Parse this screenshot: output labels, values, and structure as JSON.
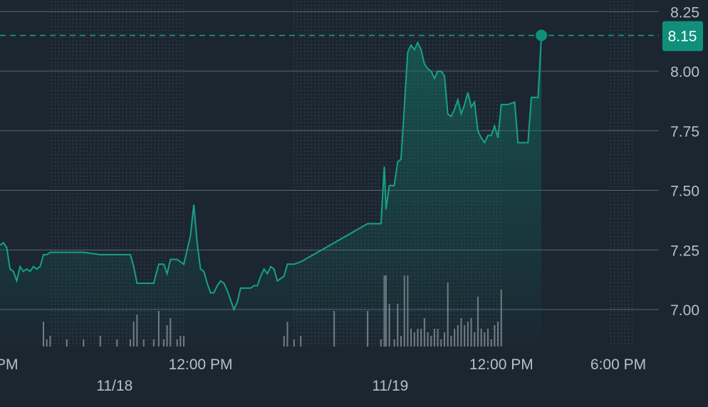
{
  "chart_data": {
    "type": "area",
    "title": "",
    "xlabel": "",
    "ylabel": "",
    "ylim": [
      6.9,
      8.26
    ],
    "yticks": [
      "8.25",
      "8.00",
      "7.75",
      "7.50",
      "7.25",
      "7.00"
    ],
    "xtick_time_labels": [
      {
        "label": "PM",
        "t": 0.0
      },
      {
        "label": "12:00 PM",
        "t": 1.2
      },
      {
        "label": "12:00 PM",
        "t": 3.0
      },
      {
        "label": "6:00 PM",
        "t": 3.7
      }
    ],
    "xtick_date_labels": [
      {
        "label": "11/18",
        "t": 0.6
      },
      {
        "label": "11/19",
        "t": 2.25
      }
    ],
    "last_price": 8.15,
    "last_price_label": "8.15",
    "colors": {
      "background": "#1b2631",
      "line": "#17a08a",
      "fill_top": "#117766",
      "grid": "#5b6670",
      "badge": "#10907b",
      "volume": "#8a949c",
      "extended_hours_dots": "#3a4650"
    },
    "extended_hours_bands": [
      [
        0.25,
        1.05
      ],
      [
        1.7,
        2.95
      ],
      [
        3.6,
        3.95
      ]
    ],
    "series": [
      {
        "values": [
          [
            0.0,
            7.27
          ],
          [
            0.02,
            7.28
          ],
          [
            0.04,
            7.26
          ],
          [
            0.06,
            7.17
          ],
          [
            0.08,
            7.16
          ],
          [
            0.1,
            7.12
          ],
          [
            0.12,
            7.18
          ],
          [
            0.14,
            7.16
          ],
          [
            0.16,
            7.17
          ],
          [
            0.18,
            7.16
          ],
          [
            0.2,
            7.18
          ],
          [
            0.22,
            7.17
          ],
          [
            0.24,
            7.18
          ],
          [
            0.26,
            7.23
          ],
          [
            0.28,
            7.23
          ],
          [
            0.3,
            7.24
          ],
          [
            0.4,
            7.24
          ],
          [
            0.5,
            7.24
          ],
          [
            0.6,
            7.23
          ],
          [
            0.7,
            7.23
          ],
          [
            0.78,
            7.23
          ],
          [
            0.8,
            7.18
          ],
          [
            0.82,
            7.11
          ],
          [
            0.86,
            7.11
          ],
          [
            0.92,
            7.11
          ],
          [
            0.95,
            7.19
          ],
          [
            0.98,
            7.19
          ],
          [
            1.0,
            7.15
          ],
          [
            1.02,
            7.21
          ],
          [
            1.06,
            7.21
          ],
          [
            1.08,
            7.2
          ],
          [
            1.1,
            7.19
          ],
          [
            1.12,
            7.25
          ],
          [
            1.14,
            7.31
          ],
          [
            1.16,
            7.44
          ],
          [
            1.18,
            7.28
          ],
          [
            1.2,
            7.17
          ],
          [
            1.22,
            7.16
          ],
          [
            1.24,
            7.11
          ],
          [
            1.26,
            7.07
          ],
          [
            1.28,
            7.07
          ],
          [
            1.3,
            7.1
          ],
          [
            1.32,
            7.12
          ],
          [
            1.34,
            7.11
          ],
          [
            1.36,
            7.08
          ],
          [
            1.38,
            7.04
          ],
          [
            1.4,
            7.0
          ],
          [
            1.42,
            7.03
          ],
          [
            1.44,
            7.09
          ],
          [
            1.46,
            7.09
          ],
          [
            1.48,
            7.09
          ],
          [
            1.5,
            7.09
          ],
          [
            1.52,
            7.1
          ],
          [
            1.54,
            7.1
          ],
          [
            1.56,
            7.14
          ],
          [
            1.58,
            7.17
          ],
          [
            1.6,
            7.15
          ],
          [
            1.62,
            7.18
          ],
          [
            1.64,
            7.17
          ],
          [
            1.66,
            7.12
          ],
          [
            1.68,
            7.13
          ],
          [
            1.7,
            7.14
          ],
          [
            1.72,
            7.19
          ],
          [
            1.76,
            7.19
          ],
          [
            1.8,
            7.2
          ],
          [
            2.0,
            7.28
          ],
          [
            2.2,
            7.36
          ],
          [
            2.28,
            7.36
          ],
          [
            2.3,
            7.6
          ],
          [
            2.31,
            7.42
          ],
          [
            2.33,
            7.52
          ],
          [
            2.36,
            7.52
          ],
          [
            2.38,
            7.62
          ],
          [
            2.4,
            7.63
          ],
          [
            2.42,
            7.85
          ],
          [
            2.44,
            8.08
          ],
          [
            2.46,
            8.11
          ],
          [
            2.48,
            8.09
          ],
          [
            2.5,
            8.12
          ],
          [
            2.52,
            8.09
          ],
          [
            2.54,
            8.03
          ],
          [
            2.56,
            8.01
          ],
          [
            2.58,
            8.0
          ],
          [
            2.6,
            7.97
          ],
          [
            2.62,
            8.0
          ],
          [
            2.64,
            8.0
          ],
          [
            2.66,
            7.98
          ],
          [
            2.68,
            7.82
          ],
          [
            2.7,
            7.81
          ],
          [
            2.72,
            7.84
          ],
          [
            2.74,
            7.88
          ],
          [
            2.76,
            7.82
          ],
          [
            2.78,
            7.86
          ],
          [
            2.8,
            7.91
          ],
          [
            2.82,
            7.85
          ],
          [
            2.84,
            7.87
          ],
          [
            2.86,
            7.75
          ],
          [
            2.88,
            7.72
          ],
          [
            2.9,
            7.7
          ],
          [
            2.92,
            7.73
          ],
          [
            2.94,
            7.73
          ],
          [
            2.96,
            7.77
          ],
          [
            2.98,
            7.72
          ],
          [
            3.0,
            7.86
          ],
          [
            3.04,
            7.86
          ],
          [
            3.08,
            7.87
          ],
          [
            3.1,
            7.7
          ],
          [
            3.16,
            7.7
          ],
          [
            3.18,
            7.89
          ],
          [
            3.22,
            7.89
          ],
          [
            3.24,
            8.15
          ]
        ]
      }
    ]
  }
}
